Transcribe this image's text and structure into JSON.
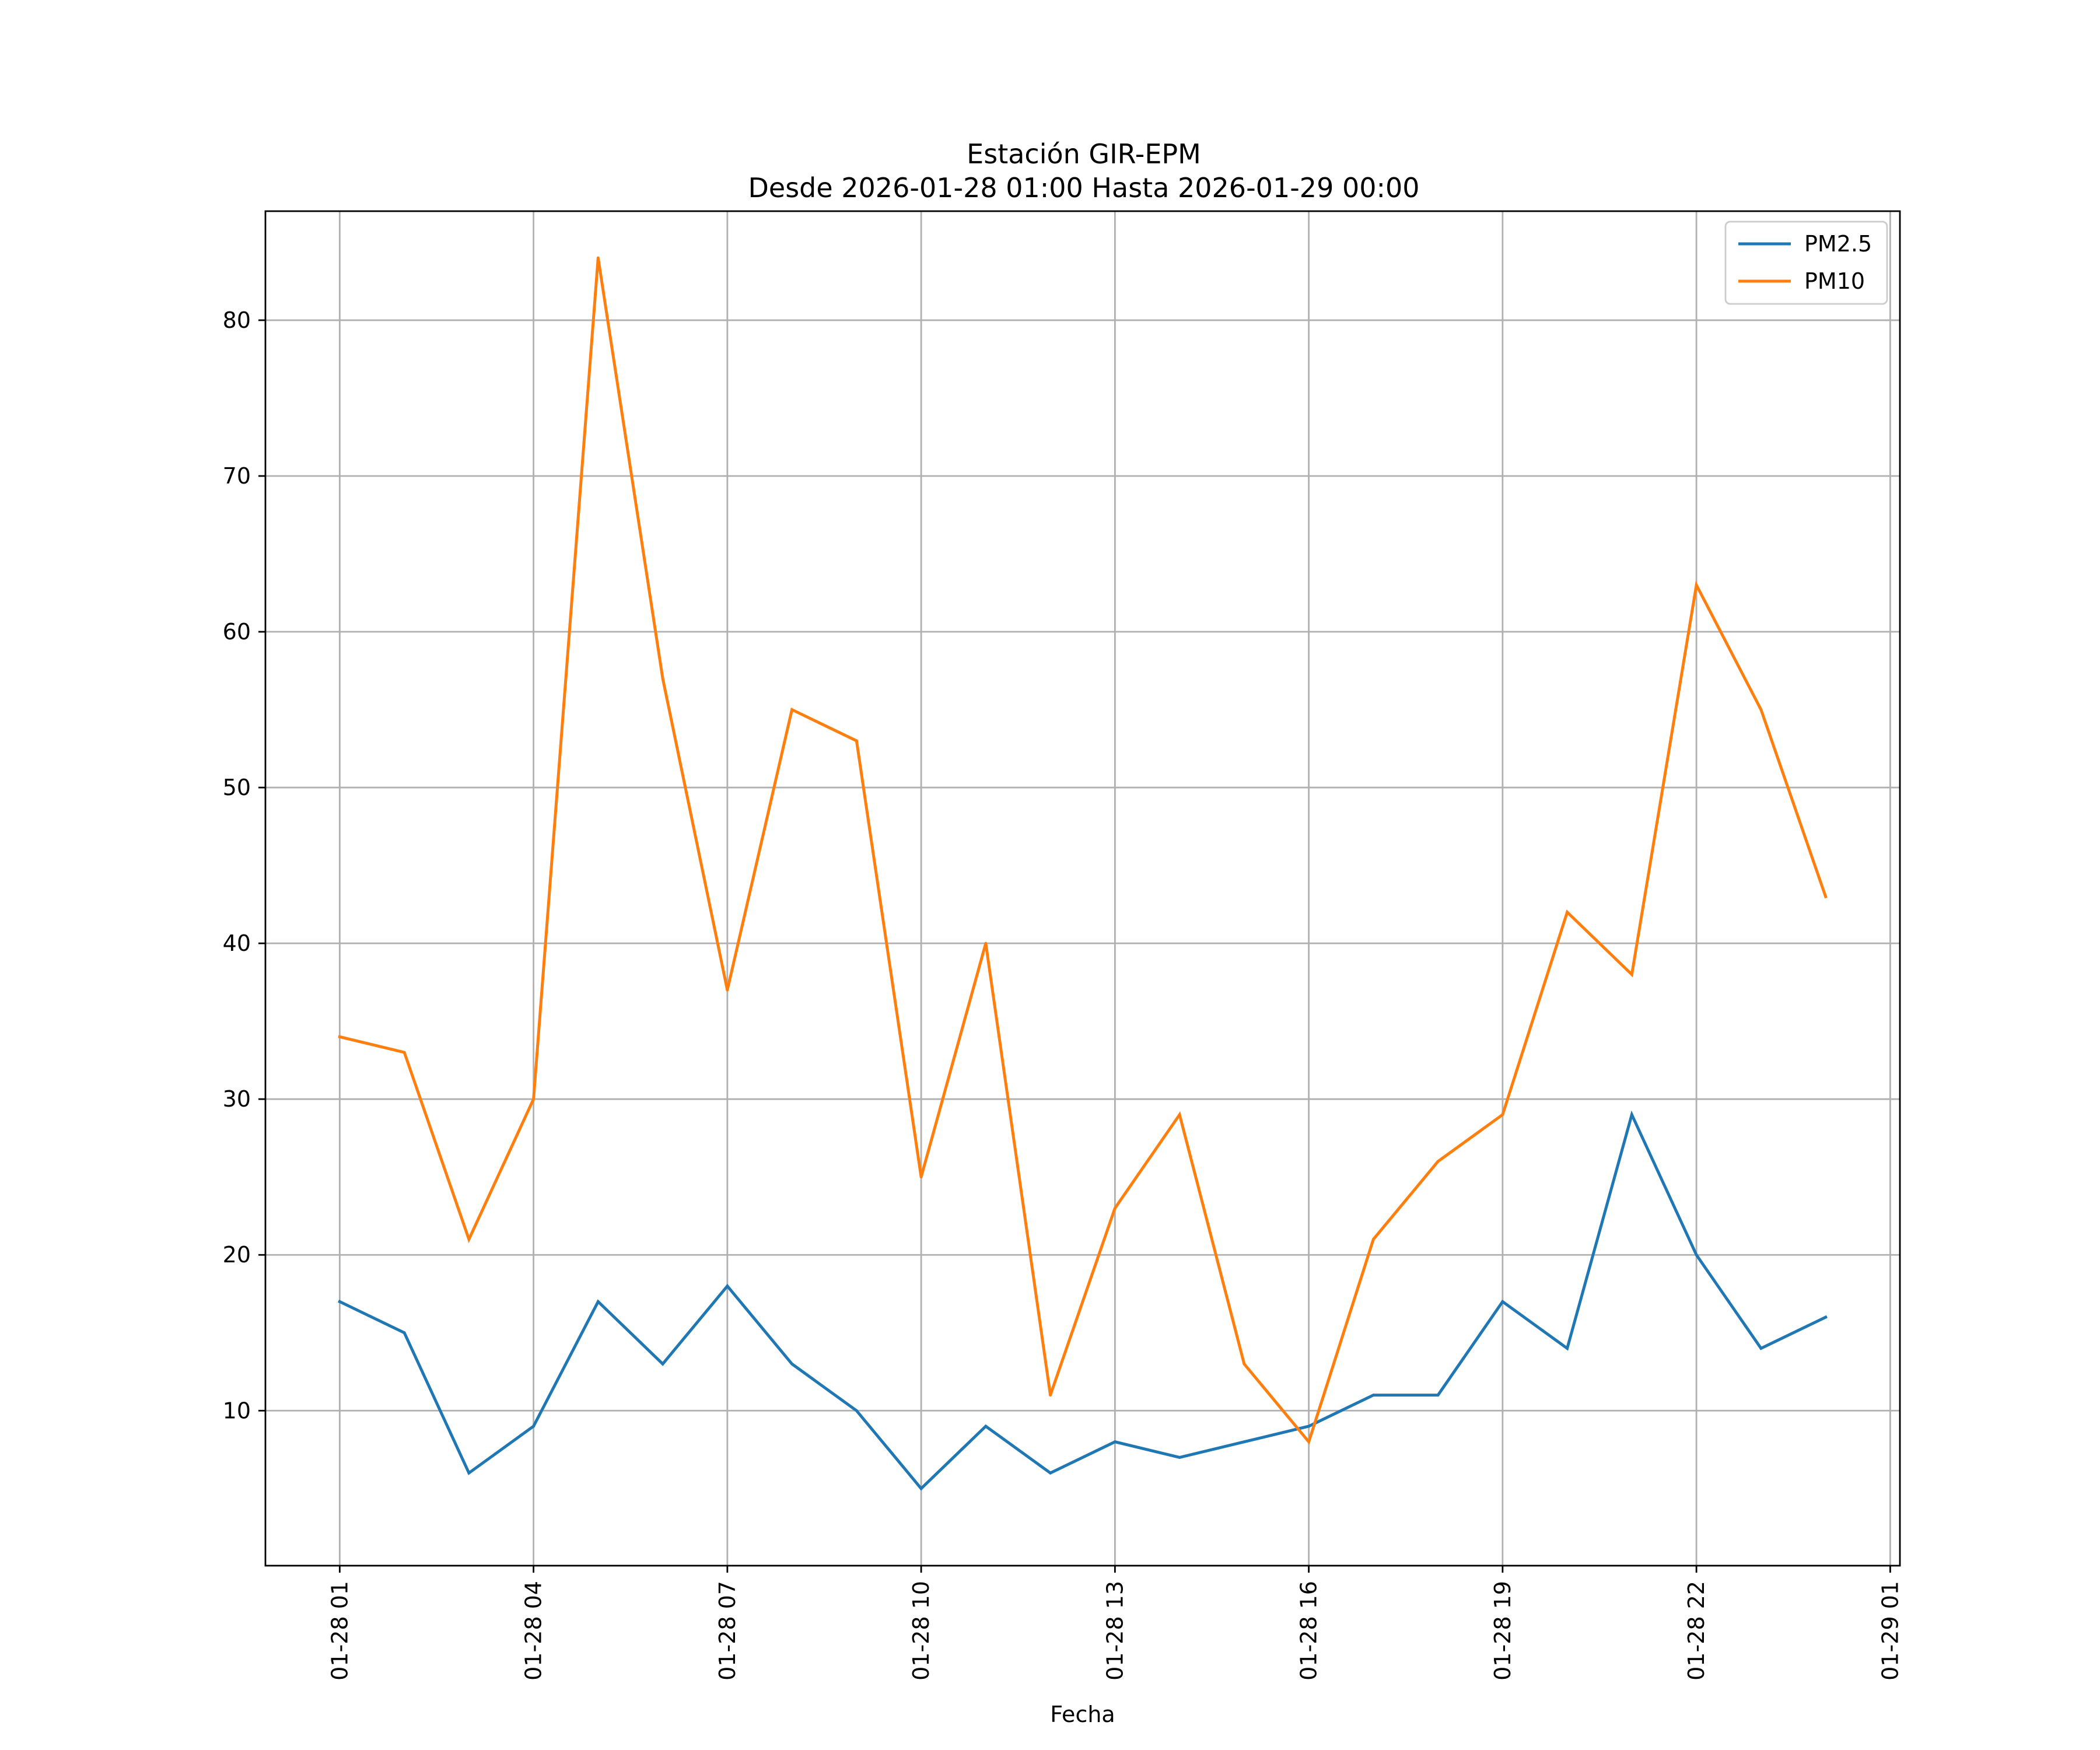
{
  "chart_data": {
    "type": "line",
    "title": "Estación GIR-EPM",
    "subtitle": "Desde 2026-01-28 01:00 Hasta 2026-01-29 00:00",
    "xlabel": "Fecha",
    "ylabel": "",
    "x": [
      "01-28 01",
      "01-28 02",
      "01-28 03",
      "01-28 04",
      "01-28 05",
      "01-28 06",
      "01-28 07",
      "01-28 08",
      "01-28 09",
      "01-28 10",
      "01-28 11",
      "01-28 12",
      "01-28 13",
      "01-28 14",
      "01-28 15",
      "01-28 16",
      "01-28 17",
      "01-28 18",
      "01-28 19",
      "01-28 20",
      "01-28 21",
      "01-28 22",
      "01-28 23",
      "01-29 00"
    ],
    "x_hours": [
      1,
      2,
      3,
      4,
      5,
      6,
      7,
      8,
      9,
      10,
      11,
      12,
      13,
      14,
      15,
      16,
      17,
      18,
      19,
      20,
      21,
      22,
      23,
      24
    ],
    "xlim_hours": [
      -0.15,
      25.15
    ],
    "xticks": [
      {
        "hour": 1,
        "label": "01-28 01"
      },
      {
        "hour": 4,
        "label": "01-28 04"
      },
      {
        "hour": 7,
        "label": "01-28 07"
      },
      {
        "hour": 10,
        "label": "01-28 10"
      },
      {
        "hour": 13,
        "label": "01-28 13"
      },
      {
        "hour": 16,
        "label": "01-28 16"
      },
      {
        "hour": 19,
        "label": "01-28 19"
      },
      {
        "hour": 22,
        "label": "01-28 22"
      },
      {
        "hour": 25,
        "label": "01-29 01"
      }
    ],
    "ylim": [
      0.05,
      87.0
    ],
    "yticks": [
      10,
      20,
      30,
      40,
      50,
      60,
      70,
      80
    ],
    "grid": true,
    "legend_position": "top-right",
    "series": [
      {
        "name": "PM2.5",
        "color": "#1f77b4",
        "values": [
          17,
          15,
          6,
          9,
          17,
          13,
          18,
          13,
          10,
          5,
          9,
          6,
          8,
          7,
          8,
          9,
          11,
          11,
          17,
          14,
          29,
          20,
          14,
          16
        ]
      },
      {
        "name": "PM10",
        "color": "#ff7f0e",
        "values": [
          34,
          33,
          21,
          30,
          84,
          57,
          37,
          55,
          53,
          25,
          40,
          11,
          23,
          29,
          13,
          8,
          21,
          26,
          29,
          42,
          38,
          63,
          55,
          43
        ]
      }
    ]
  }
}
